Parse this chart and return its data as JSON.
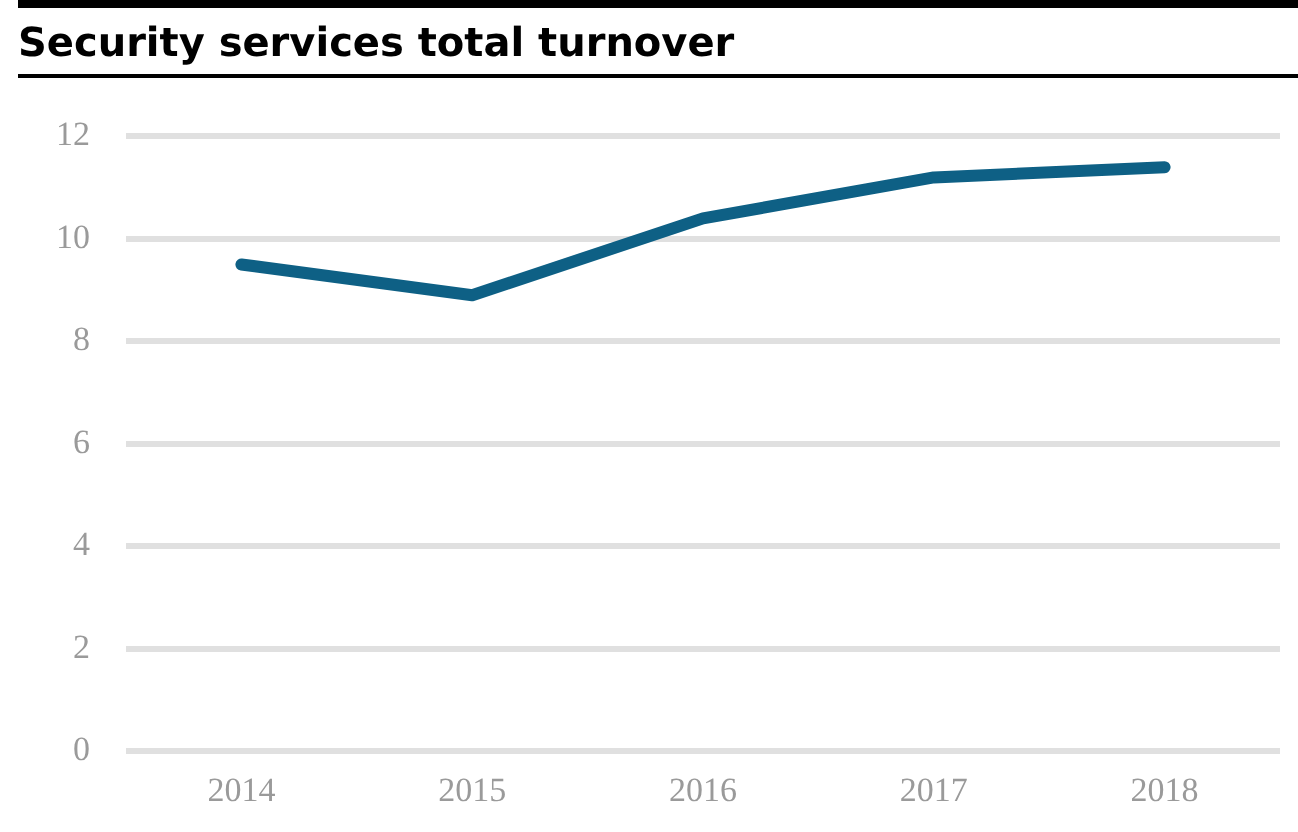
{
  "chart_data": {
    "type": "line",
    "title": "Security services total turnover",
    "categories": [
      "2014",
      "2015",
      "2016",
      "2017",
      "2018"
    ],
    "series": [
      {
        "color": "#0e6085",
        "values": [
          9.5,
          8.9,
          10.4,
          11.2,
          11.4
        ]
      }
    ],
    "ylim": [
      0,
      12
    ],
    "yticks": [
      0,
      2,
      4,
      6,
      8,
      10,
      12
    ],
    "grid": "y",
    "legend": false,
    "marker": "none",
    "line_style": "solid"
  }
}
